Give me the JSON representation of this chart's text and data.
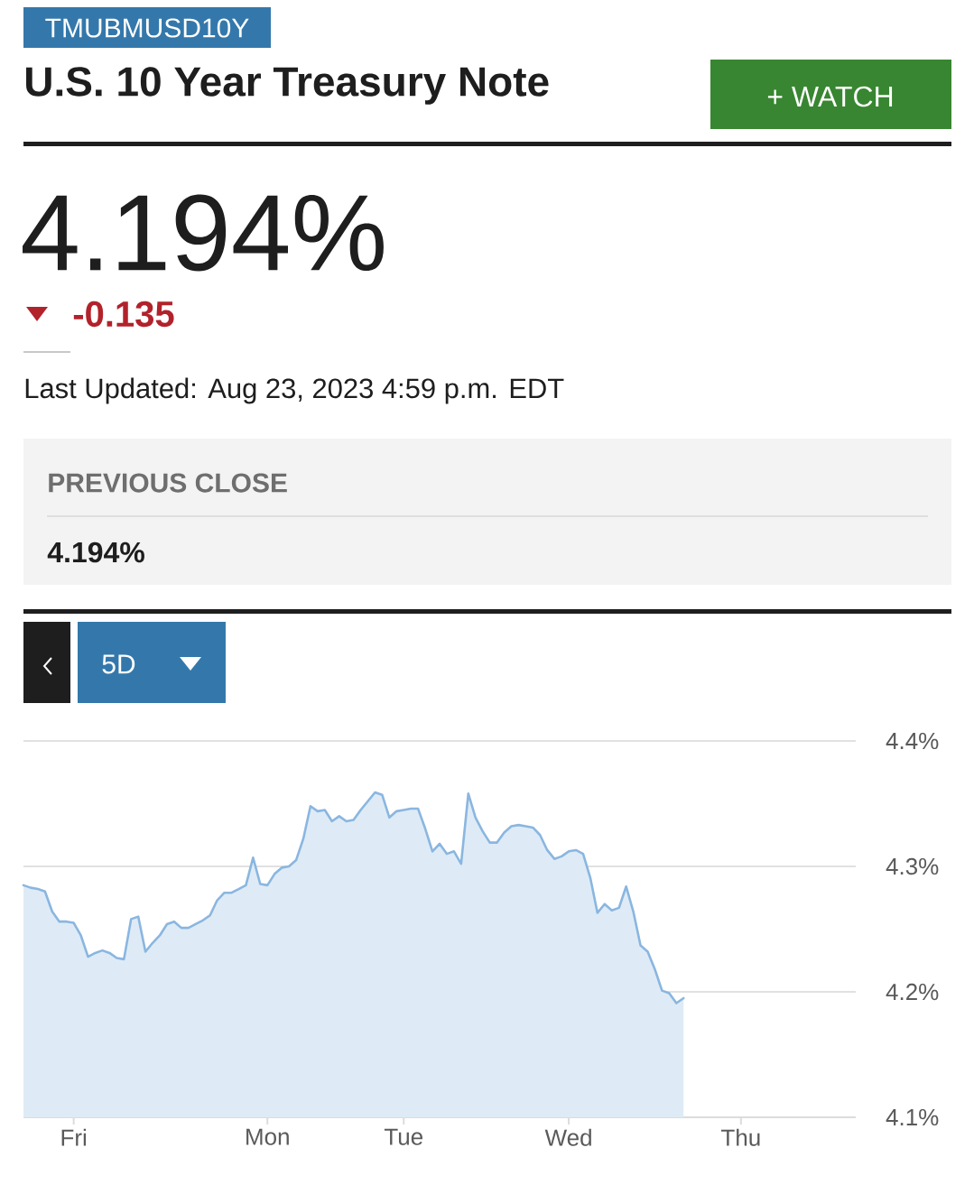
{
  "chart_data": {
    "type": "area",
    "title": "U.S. 10 Year Treasury Note",
    "annotations": [
      "TMUBMUSD10Y",
      "4.194%",
      "-0.135",
      "Last Updated: Aug 23, 2023 4:59 p.m. EDT",
      "PREVIOUS CLOSE",
      "4.194%",
      "+ WATCH",
      "5D"
    ],
    "categories": [
      null,
      null,
      null,
      null,
      null,
      null,
      null,
      "Fri",
      null,
      null,
      null,
      null,
      null,
      null,
      null,
      null,
      null,
      null,
      null,
      null,
      null,
      null,
      null,
      null,
      null,
      null,
      null,
      null,
      null,
      null,
      null,
      null,
      null,
      null,
      "Mon",
      null,
      null,
      null,
      null,
      null,
      null,
      null,
      null,
      null,
      null,
      null,
      null,
      null,
      null,
      null,
      null,
      null,
      null,
      "Tue",
      null,
      null,
      null,
      null,
      null,
      null,
      null,
      null,
      null,
      null,
      null,
      null,
      null,
      null,
      null,
      null,
      null,
      null,
      null,
      null,
      null,
      null,
      "Wed",
      null,
      null,
      null,
      null,
      null,
      null,
      null,
      null,
      null,
      null,
      null,
      null,
      null,
      null,
      null,
      null,
      null,
      null,
      null,
      null,
      null,
      null,
      null,
      "Thu",
      null,
      null,
      null,
      null,
      null,
      null,
      null,
      null,
      null,
      null,
      null,
      null,
      null,
      null,
      null,
      null
    ],
    "ylim": [
      4.1,
      4.4
    ],
    "yticks": [
      {
        "value": 4.1,
        "label": "4.1%"
      },
      {
        "value": 4.2,
        "label": "4.2%"
      },
      {
        "value": 4.3,
        "label": "4.3%"
      },
      {
        "value": 4.4,
        "label": "4.4%"
      }
    ],
    "grid": "y",
    "series": [
      {
        "color": "#8ab6e0",
        "values": [
          4.285,
          4.283,
          4.282,
          4.28,
          4.264,
          4.256,
          4.256,
          4.255,
          4.245,
          4.228,
          4.231,
          4.233,
          4.231,
          4.227,
          4.226,
          4.258,
          4.26,
          4.232,
          4.239,
          4.245,
          4.254,
          4.256,
          4.251,
          4.251,
          4.254,
          4.257,
          4.261,
          4.273,
          4.279,
          4.279,
          4.282,
          4.285,
          4.307,
          4.286,
          4.285,
          4.294,
          4.299,
          4.3,
          4.305,
          4.322,
          4.348,
          4.344,
          4.345,
          4.336,
          4.34,
          4.336,
          4.337,
          4.345,
          4.352,
          4.359,
          4.357,
          4.339,
          4.344,
          4.345,
          4.346,
          4.346,
          4.33,
          4.312,
          4.318,
          4.31,
          4.312,
          4.302,
          4.358,
          4.339,
          4.328,
          4.319,
          4.319,
          4.327,
          4.332,
          4.333,
          4.332,
          4.331,
          4.325,
          4.313,
          4.306,
          4.308,
          4.312,
          4.313,
          4.31,
          4.291,
          4.263,
          4.27,
          4.265,
          4.267,
          4.284,
          4.264,
          4.237,
          4.232,
          4.218,
          4.201,
          4.199,
          4.191,
          4.195,
          null,
          null,
          null,
          null,
          null,
          null,
          null,
          null,
          null,
          null,
          null,
          null,
          null,
          null,
          null,
          null,
          null,
          null,
          null,
          null,
          null,
          null,
          null,
          null
        ]
      }
    ]
  }
}
